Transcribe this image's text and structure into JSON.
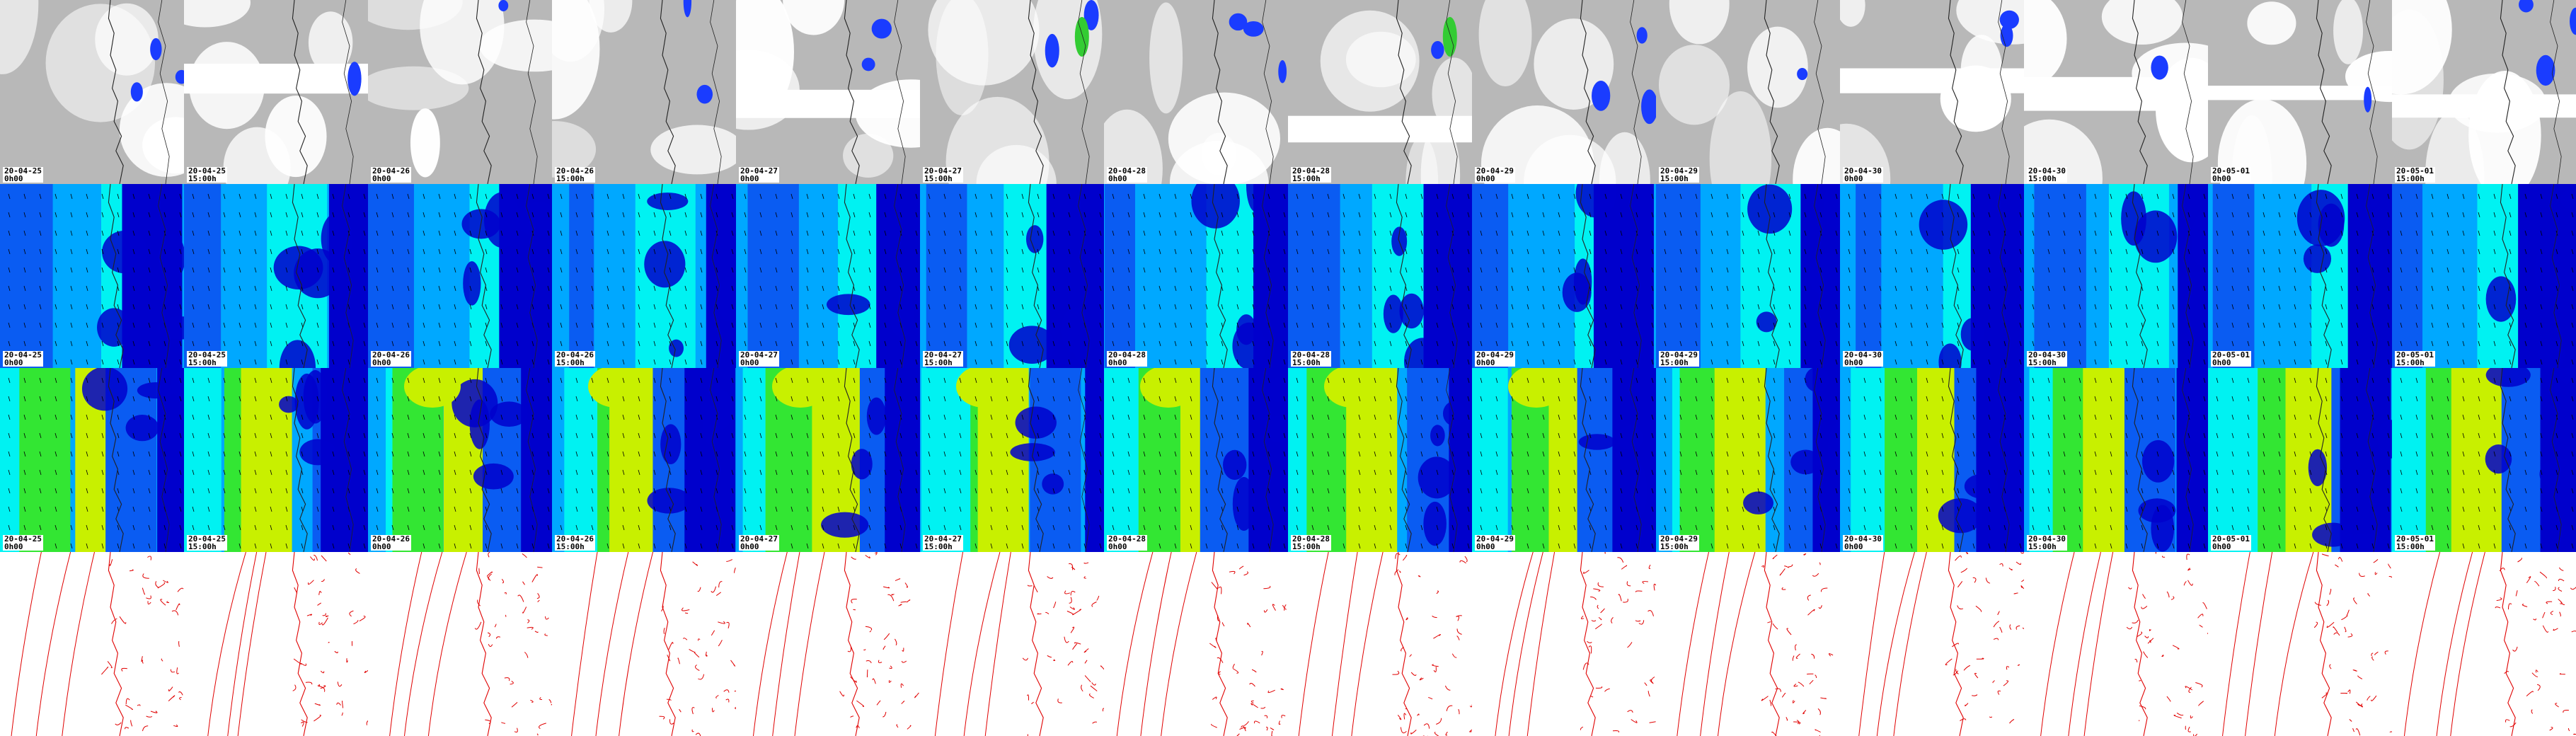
{
  "panel_grid": {
    "columns": 14,
    "rows": 4,
    "row_kinds": [
      "cloud-cover",
      "wind-low-level",
      "wind-upper-level",
      "pressure-isobars"
    ]
  },
  "timestamps": [
    {
      "date": "20-04-25",
      "time": "0h00"
    },
    {
      "date": "20-04-25",
      "time": "15:00h"
    },
    {
      "date": "20-04-26",
      "time": "0h00"
    },
    {
      "date": "20-04-26",
      "time": "15:00h"
    },
    {
      "date": "20-04-27",
      "time": "0h00"
    },
    {
      "date": "20-04-27",
      "time": "15:00h"
    },
    {
      "date": "20-04-28",
      "time": "0h00"
    },
    {
      "date": "20-04-28",
      "time": "15:00h"
    },
    {
      "date": "20-04-29",
      "time": "0h00"
    },
    {
      "date": "20-04-29",
      "time": "15:00h"
    },
    {
      "date": "20-04-30",
      "time": "0h00"
    },
    {
      "date": "20-04-30",
      "time": "15:00h"
    },
    {
      "date": "20-05-01",
      "time": "0h00"
    },
    {
      "date": "20-05-01",
      "time": "15:00h"
    }
  ],
  "colors": {
    "cloud_background": "#b8b8b8",
    "cloud_white": "#ffffff",
    "precip_blue": "#1a3cff",
    "precip_green": "#33cc33",
    "wind_dark": "#0000cc",
    "wind_mid": "#0a5cf2",
    "wind_light": "#00a8ff",
    "wind_cyan": "#00f2f2",
    "wind_green": "#33e633",
    "wind_yellow": "#c8f000",
    "isobar_red": "#e00000",
    "coast_line": "#222222"
  }
}
